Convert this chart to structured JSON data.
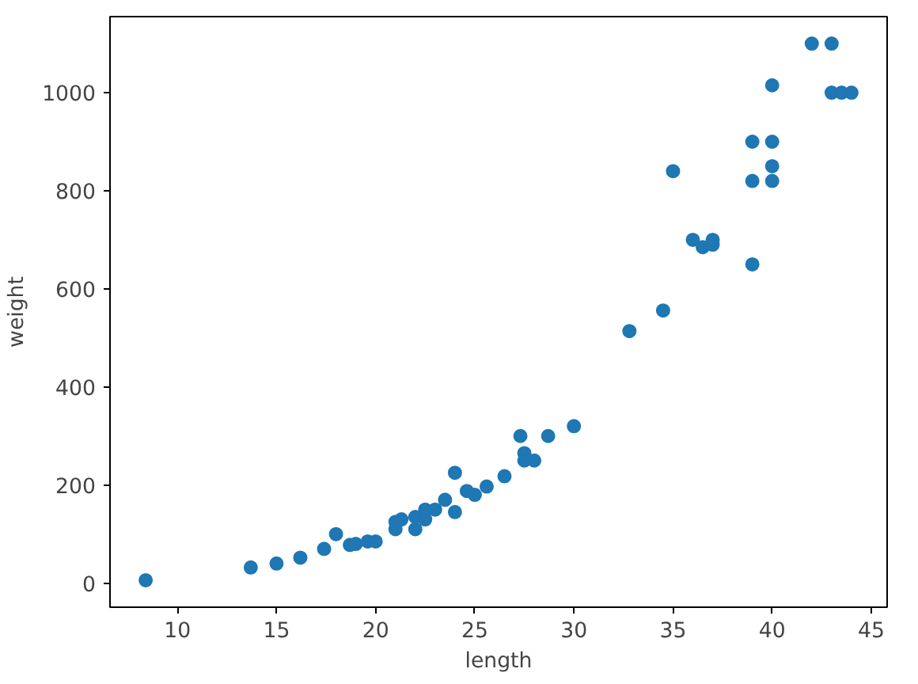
{
  "chart_data": {
    "type": "scatter",
    "xlabel": "length",
    "ylabel": "weight",
    "x": [
      8.4,
      13.7,
      15.0,
      16.2,
      17.4,
      18.0,
      18.7,
      19.0,
      19.6,
      20.0,
      21.0,
      21.0,
      21.3,
      22.0,
      22.0,
      22.5,
      22.5,
      23.0,
      23.5,
      24.0,
      24.0,
      24.6,
      25.0,
      25.6,
      26.5,
      27.3,
      27.5,
      27.5,
      28.0,
      28.7,
      30.0,
      32.8,
      34.5,
      35.0,
      36.5,
      36.0,
      37.0,
      37.0,
      39.0,
      39.0,
      39.0,
      40.0,
      40.0,
      40.0,
      40.0,
      42.0,
      43.0,
      43.0,
      43.5,
      44.0
    ],
    "series": [
      {
        "color": "#1f77b4",
        "values": [
          6,
          32,
          40,
          52,
          70,
          100,
          78,
          80,
          85,
          85,
          110,
          125,
          130,
          135,
          110,
          130,
          150,
          150,
          170,
          225,
          145,
          188,
          180,
          197,
          218,
          300,
          265,
          250,
          250,
          300,
          320,
          514,
          556,
          840,
          685,
          700,
          700,
          690,
          900,
          650,
          820,
          850,
          900,
          1015,
          820,
          1100,
          1000,
          1100,
          1000,
          1000
        ]
      }
    ],
    "xlim": [
      6.6,
      45.8
    ],
    "ylim": [
      -49,
      1155
    ],
    "xticks": [
      10,
      15,
      20,
      25,
      30,
      35,
      40,
      45
    ],
    "yticks": [
      0,
      200,
      400,
      600,
      800,
      1000
    ],
    "marker": "circle",
    "grid": false
  }
}
